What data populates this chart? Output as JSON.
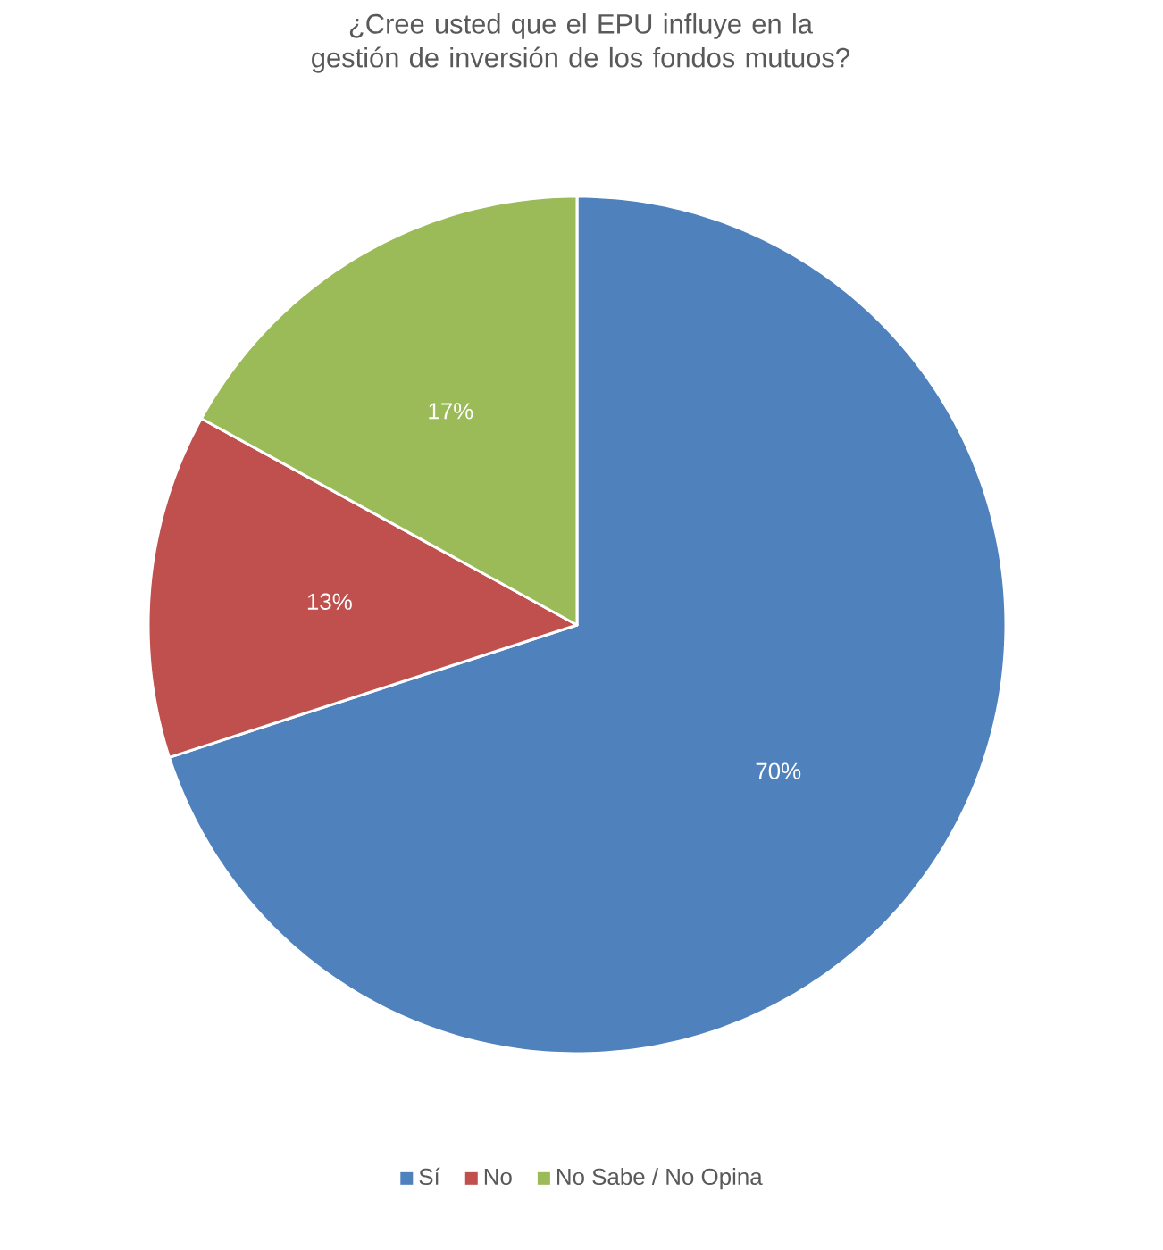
{
  "chart_data": {
    "type": "pie",
    "title": "¿Cree usted que el EPU influye en la gestión de inversión de los fondos mutuos?",
    "categories": [
      "Sí",
      "No",
      "No Sabe / No Opina"
    ],
    "values": [
      70,
      13,
      17
    ],
    "colors": [
      "#4f81bd",
      "#c0504d",
      "#9bbb59"
    ],
    "value_labels": [
      "70%",
      "13%",
      "17%"
    ],
    "legend": "bottom"
  }
}
